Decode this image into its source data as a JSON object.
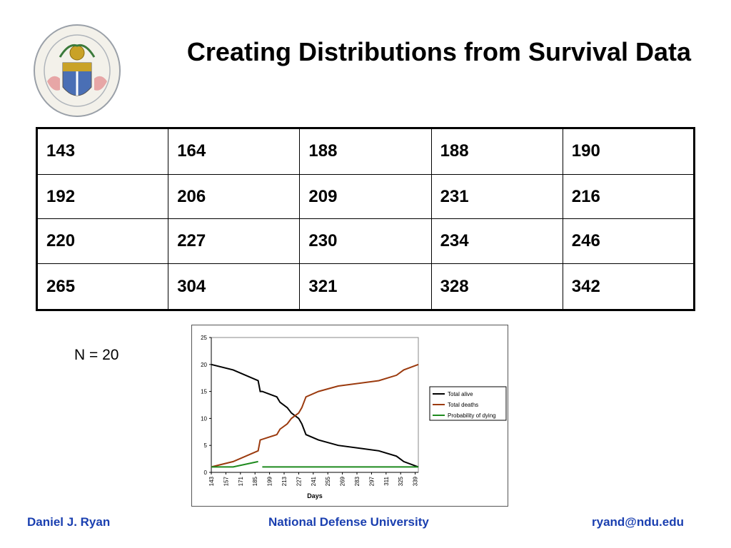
{
  "title": "Creating Distributions from Survival Data",
  "table": {
    "rows": [
      [
        "143",
        "164",
        "188",
        "188",
        "190"
      ],
      [
        "192",
        "206",
        "209",
        "231",
        "216"
      ],
      [
        "220",
        "227",
        "230",
        "234",
        "246"
      ],
      [
        "265",
        "304",
        "321",
        "328",
        "342"
      ]
    ]
  },
  "n_label": "N = 20",
  "chart_data": {
    "type": "line",
    "xlabel": "Days",
    "ylabel": "",
    "ylim": [
      0,
      25
    ],
    "yticks": [
      0,
      5,
      10,
      15,
      20,
      25
    ],
    "xticks": [
      143,
      157,
      171,
      185,
      199,
      213,
      227,
      241,
      255,
      269,
      283,
      297,
      311,
      325,
      339
    ],
    "xlim": [
      143,
      342
    ],
    "legend_position": "right",
    "grid": false,
    "series": [
      {
        "name": "Total alive",
        "color": "#000000",
        "points": [
          [
            143,
            20
          ],
          [
            164,
            19
          ],
          [
            188,
            17
          ],
          [
            190,
            15
          ],
          [
            192,
            15
          ],
          [
            206,
            14
          ],
          [
            209,
            13
          ],
          [
            216,
            12
          ],
          [
            220,
            11
          ],
          [
            227,
            10
          ],
          [
            230,
            9
          ],
          [
            234,
            7
          ],
          [
            246,
            6
          ],
          [
            265,
            5
          ],
          [
            304,
            4
          ],
          [
            321,
            3
          ],
          [
            328,
            2
          ],
          [
            342,
            1
          ]
        ]
      },
      {
        "name": "Total deaths",
        "color": "#9b3a0e",
        "points": [
          [
            143,
            1
          ],
          [
            164,
            2
          ],
          [
            188,
            4
          ],
          [
            190,
            6
          ],
          [
            206,
            7
          ],
          [
            209,
            8
          ],
          [
            216,
            9
          ],
          [
            220,
            10
          ],
          [
            227,
            11
          ],
          [
            230,
            12
          ],
          [
            234,
            14
          ],
          [
            246,
            15
          ],
          [
            265,
            16
          ],
          [
            304,
            17
          ],
          [
            321,
            18
          ],
          [
            328,
            19
          ],
          [
            342,
            20
          ]
        ]
      },
      {
        "name": "Probability of dying",
        "color": "#1e8a1e",
        "segments": [
          [
            [
              143,
              1
            ],
            [
              164,
              1
            ],
            [
              188,
              2
            ]
          ],
          [
            [
              192,
              1
            ],
            [
              342,
              1
            ]
          ]
        ]
      }
    ]
  },
  "footer": {
    "left": "Daniel J. Ryan",
    "center": "National Defense University",
    "right": "ryand@ndu.edu"
  },
  "colors": {
    "footer_text": "#1a3fb0",
    "logo_gold": "#c9a227",
    "logo_blue": "#4a6fb5"
  }
}
